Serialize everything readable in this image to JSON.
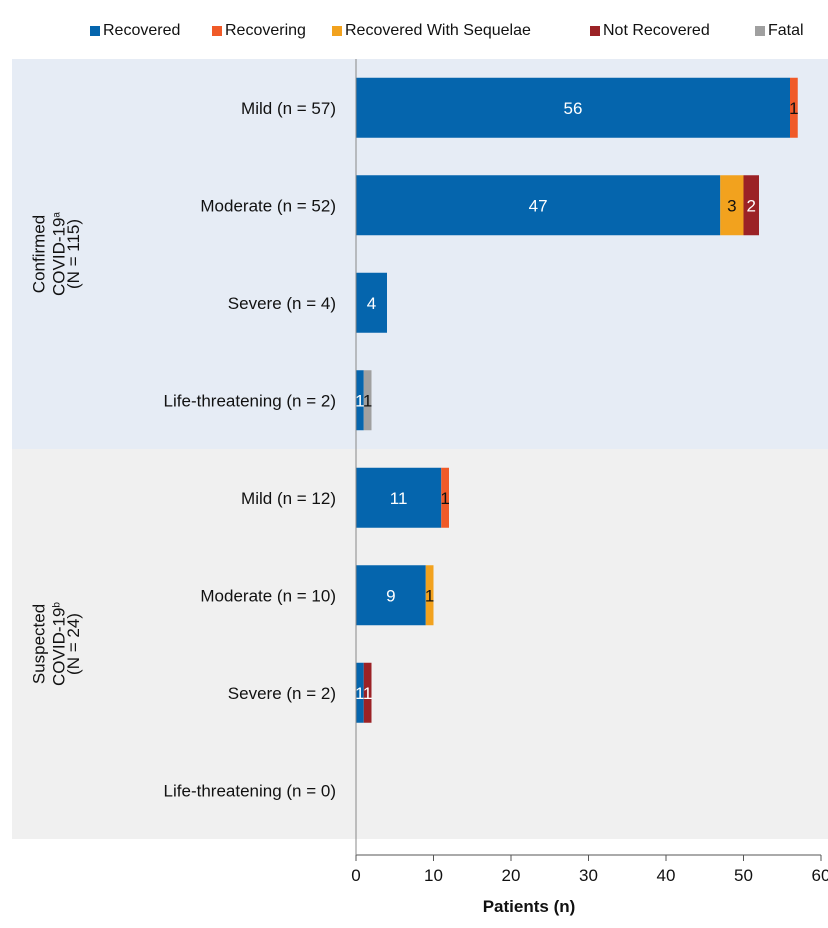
{
  "chart_data": {
    "type": "bar",
    "orientation": "horizontal",
    "stacked": true,
    "xlabel": "Patients (n)",
    "xlim": [
      0,
      60
    ],
    "xticks": [
      "0",
      "10",
      "20",
      "30",
      "40",
      "50",
      "60"
    ],
    "legend_position": "top",
    "groups": [
      {
        "label_lines": [
          "Confirmed",
          "COVID-19",
          "(N = 115)"
        ],
        "superscript": "a",
        "background": "#e6ecf5",
        "categories": [
          "Mild (n = 57)",
          "Moderate (n = 52)",
          "Severe (n = 4)",
          "Life-threatening (n = 2)"
        ]
      },
      {
        "label_lines": [
          "Suspected",
          "COVID-19",
          "(N = 24)"
        ],
        "superscript": "b",
        "background": "#f0f0f0",
        "categories": [
          "Mild (n = 12)",
          "Moderate (n = 10)",
          "Severe (n = 2)",
          "Life-threatening (n = 0)"
        ]
      }
    ],
    "series": [
      {
        "name": "Recovered",
        "color": "#0565ad",
        "values": [
          56,
          47,
          4,
          1,
          11,
          9,
          1,
          0
        ]
      },
      {
        "name": "Recovering",
        "color": "#f05a28",
        "values": [
          1,
          0,
          0,
          0,
          1,
          0,
          0,
          0
        ]
      },
      {
        "name": "Recovered With Sequelae",
        "color": "#f2a21e",
        "values": [
          0,
          3,
          0,
          0,
          0,
          1,
          0,
          0
        ]
      },
      {
        "name": "Not Recovered",
        "color": "#9b2226",
        "values": [
          0,
          2,
          0,
          0,
          0,
          0,
          1,
          0
        ]
      },
      {
        "name": "Fatal",
        "color": "#a0a0a0",
        "values": [
          0,
          0,
          0,
          1,
          0,
          0,
          0,
          0
        ]
      }
    ]
  }
}
